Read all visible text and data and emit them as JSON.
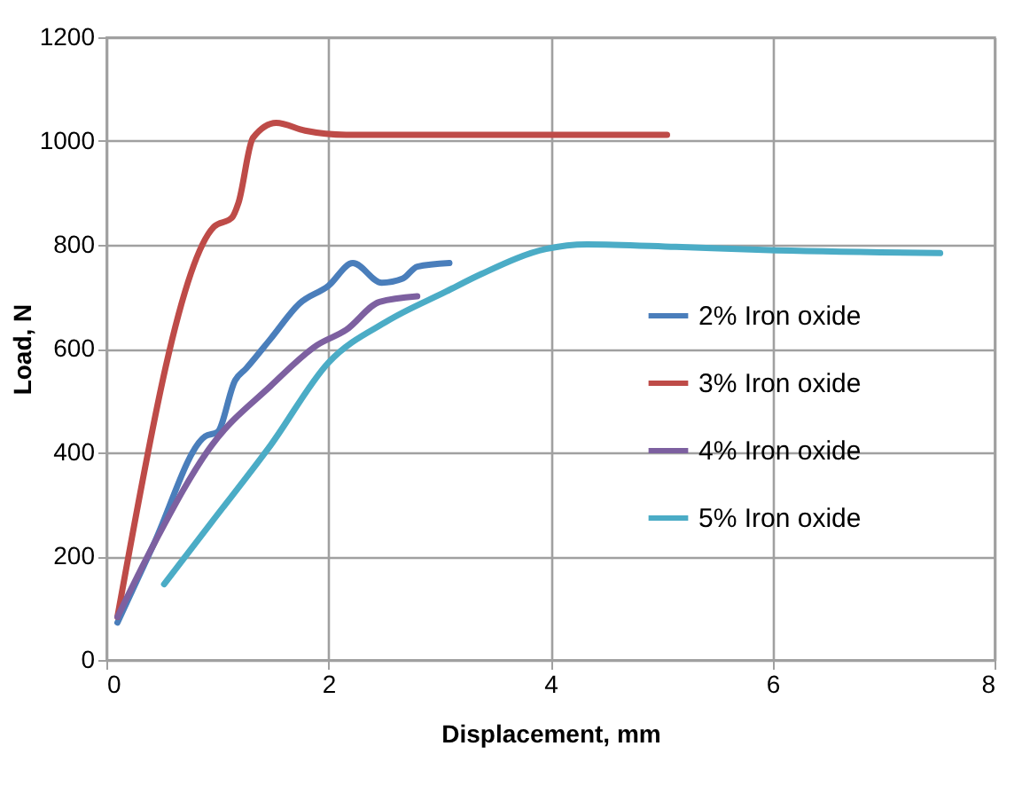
{
  "chart_data": {
    "type": "line",
    "xlabel": "Displacement, mm",
    "ylabel": "Load, N",
    "xlim": [
      0,
      8
    ],
    "xticks": [
      0,
      2,
      4,
      6,
      8
    ],
    "ylim": [
      0,
      1200
    ],
    "yticks": [
      0,
      200,
      400,
      600,
      800,
      1000,
      1200
    ],
    "grid": true,
    "legend": "right",
    "marker": "none",
    "line_style": "solid",
    "series": [
      {
        "name": "2% Iron oxide",
        "color": "#4a7ebb",
        "x": [
          0.1,
          0.42,
          0.89,
          1.0,
          1.16,
          1.26,
          1.48,
          1.74,
          2.0,
          2.22,
          2.48,
          2.67,
          2.8,
          3.09
        ],
        "values": [
          72,
          220,
          431,
          439,
          539,
          562,
          619,
          687,
          721,
          765,
          727,
          735,
          758,
          765
        ]
      },
      {
        "name": "3% Iron oxide",
        "color": "#be4b48",
        "x": [
          0.1,
          0.97,
          1.13,
          1.19,
          1.32,
          1.53,
          1.79,
          2.16,
          3.0,
          4.0,
          5.05
        ],
        "values": [
          83,
          835,
          852,
          881,
          1006,
          1035,
          1020,
          1012,
          1012,
          1012,
          1012
        ]
      },
      {
        "name": "4% Iron oxide",
        "color": "#7d60a0",
        "x": [
          0.1,
          0.42,
          0.95,
          1.48,
          1.9,
          2.16,
          2.46,
          2.8
        ],
        "values": [
          83,
          220,
          414,
          528,
          607,
          636,
          690,
          701
        ]
      },
      {
        "name": "5% Iron oxide",
        "color": "#4bacc6",
        "x": [
          0.52,
          0.95,
          1.48,
          2.0,
          2.53,
          3.06,
          3.38,
          3.96,
          4.33,
          5.13,
          5.92,
          7.51
        ],
        "values": [
          146,
          266,
          414,
          573,
          653,
          710,
          744,
          792,
          801,
          796,
          790,
          784
        ]
      }
    ]
  }
}
